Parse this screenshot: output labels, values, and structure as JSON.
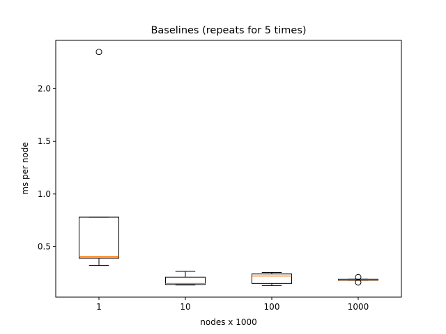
{
  "chart_data": {
    "type": "boxplot",
    "title": "Baselines (repeats for 5 times)",
    "xlabel": "nodes x 1000",
    "ylabel": "ms per node",
    "categories": [
      "1",
      "10",
      "100",
      "1000"
    ],
    "yticks": [
      0.5,
      1.0,
      1.5,
      2.0
    ],
    "ytick_labels": [
      "0.5",
      "1.0",
      "1.5",
      "2.0"
    ],
    "ylim": [
      0.02,
      2.46
    ],
    "grid": false,
    "legend": "none",
    "box_color": "#000000",
    "median_color": "#ff7f0e",
    "boxes": [
      {
        "category": "1",
        "whisker_low": 0.32,
        "q1": 0.39,
        "median": 0.405,
        "q3": 0.78,
        "whisker_high": 0.78,
        "outliers": [
          2.35
        ]
      },
      {
        "category": "10",
        "whisker_low": 0.135,
        "q1": 0.14,
        "median": 0.15,
        "q3": 0.21,
        "whisker_high": 0.265,
        "outliers": []
      },
      {
        "category": "100",
        "whisker_low": 0.13,
        "q1": 0.15,
        "median": 0.22,
        "q3": 0.24,
        "whisker_high": 0.255,
        "outliers": []
      },
      {
        "category": "1000",
        "whisker_low": 0.18,
        "q1": 0.18,
        "median": 0.185,
        "q3": 0.19,
        "whisker_high": 0.19,
        "outliers": [
          0.16,
          0.21
        ]
      }
    ]
  }
}
